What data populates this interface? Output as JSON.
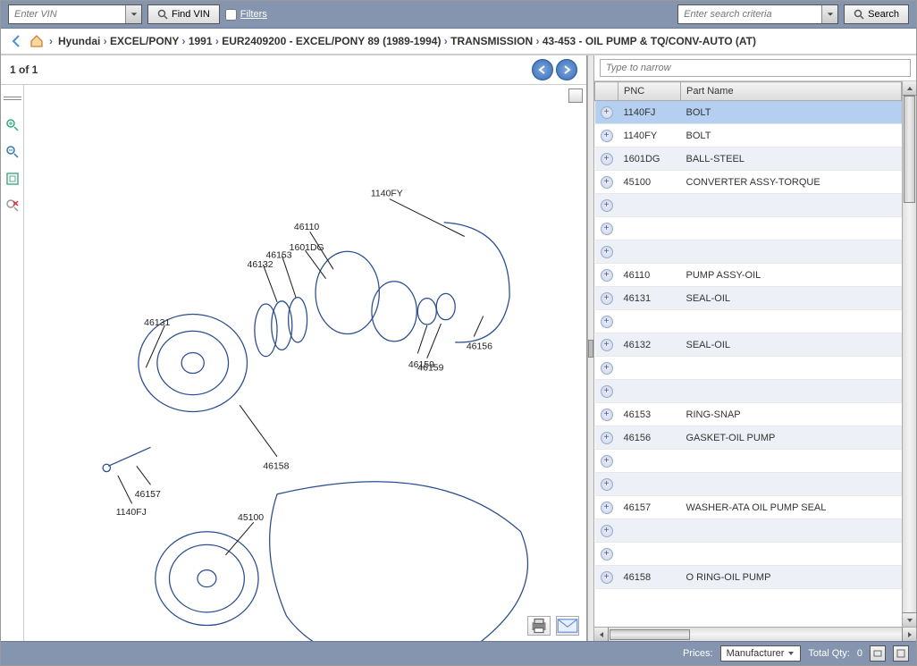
{
  "topbar": {
    "vin_placeholder": "Enter VIN",
    "find_vin_label": "Find VIN",
    "filters_label": "Filters",
    "search_placeholder": "Enter search criteria",
    "search_label": "Search"
  },
  "breadcrumbs": [
    "Hyundai",
    "EXCEL/PONY",
    "1991",
    "EUR2409200 - EXCEL/PONY 89 (1989-1994)",
    "TRANSMISSION",
    "43-453 - OIL PUMP & TQ/CONV-AUTO (AT)"
  ],
  "left": {
    "counter": "1 of 1",
    "diagram_labels": [
      "1140FY",
      "46110",
      "1601DG",
      "46153",
      "46132",
      "46131",
      "46159",
      "46156",
      "46159",
      "46158",
      "46157",
      "1140FJ",
      "45100"
    ]
  },
  "right": {
    "narrow_placeholder": "Type to narrow",
    "columns": {
      "pnc": "PNC",
      "part": "Part Name"
    },
    "rows": [
      {
        "pnc": "1140FJ",
        "part": "BOLT",
        "sel": true
      },
      {
        "pnc": "1140FY",
        "part": "BOLT"
      },
      {
        "pnc": "1601DG",
        "part": "BALL-STEEL",
        "alt": true
      },
      {
        "pnc": "45100",
        "part": "CONVERTER ASSY-TORQUE"
      },
      {
        "pnc": "",
        "part": "",
        "alt": true
      },
      {
        "pnc": "",
        "part": ""
      },
      {
        "pnc": "",
        "part": "",
        "alt": true
      },
      {
        "pnc": "46110",
        "part": "PUMP ASSY-OIL"
      },
      {
        "pnc": "46131",
        "part": "SEAL-OIL",
        "alt": true
      },
      {
        "pnc": "",
        "part": ""
      },
      {
        "pnc": "46132",
        "part": "SEAL-OIL",
        "alt": true
      },
      {
        "pnc": "",
        "part": ""
      },
      {
        "pnc": "",
        "part": "",
        "alt": true
      },
      {
        "pnc": "46153",
        "part": "RING-SNAP"
      },
      {
        "pnc": "46156",
        "part": "GASKET-OIL PUMP",
        "alt": true
      },
      {
        "pnc": "",
        "part": ""
      },
      {
        "pnc": "",
        "part": "",
        "alt": true
      },
      {
        "pnc": "46157",
        "part": "WASHER-ATA OIL PUMP SEAL"
      },
      {
        "pnc": "",
        "part": "",
        "alt": true
      },
      {
        "pnc": "",
        "part": ""
      },
      {
        "pnc": "46158",
        "part": "O RING-OIL PUMP",
        "alt": true
      }
    ]
  },
  "status": {
    "prices_label": "Prices:",
    "manufacturer_label": "Manufacturer",
    "total_label": "Total Qty:",
    "total_value": "0"
  },
  "colors": {
    "bar": "#8595b0",
    "row_sel": "#b5cff0",
    "row_alt": "#edf1f7",
    "diagram_stroke": "#2a4d8f"
  }
}
